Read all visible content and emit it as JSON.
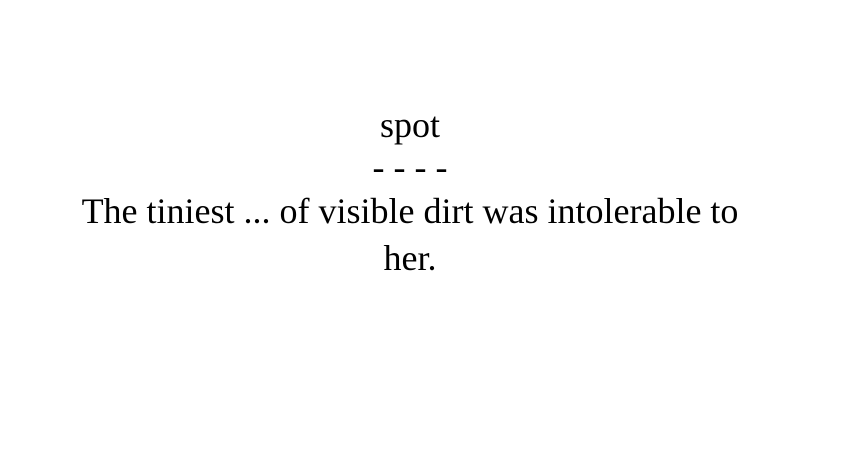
{
  "card": {
    "word": "spot",
    "separator": "- - - -",
    "sentence": "The tiniest ... of visible dirt was intolerable to her."
  }
}
